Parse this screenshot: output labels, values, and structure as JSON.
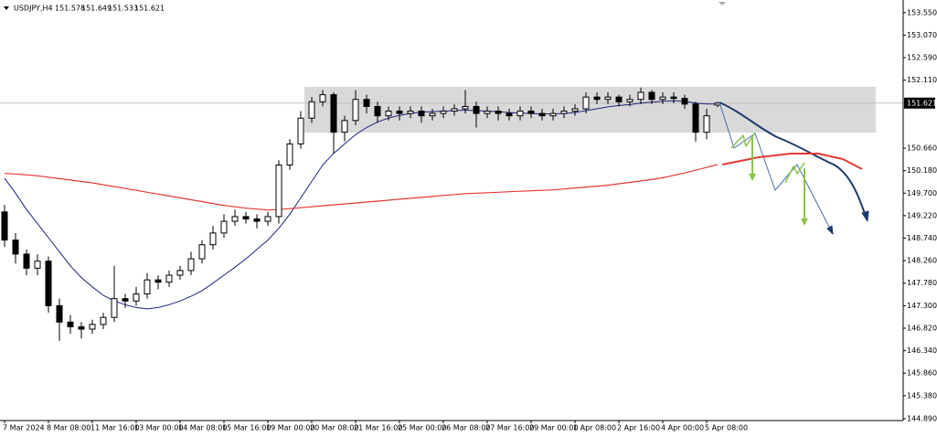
{
  "chart_data": {
    "type": "candlestick",
    "symbol": "USDJPY,H4",
    "categories": [
      "7 Mar 2024",
      null,
      null,
      null,
      "8 Mar 08:00",
      null,
      null,
      null,
      "11 Mar 16:00",
      null,
      null,
      null,
      "13 Mar 00:00",
      null,
      null,
      null,
      "14 Mar 08:00",
      null,
      null,
      null,
      "15 Mar 16:00",
      null,
      null,
      null,
      "19 Mar 00:00",
      null,
      null,
      null,
      "20 Mar 08:00",
      null,
      null,
      null,
      "21 Mar 16:00",
      null,
      null,
      null,
      "25 Mar 00:00",
      null,
      null,
      null,
      "26 Mar 08:00",
      null,
      null,
      null,
      "27 Mar 16:00",
      null,
      null,
      null,
      "29 Mar 00:00",
      null,
      null,
      null,
      "1 Apr 08:00",
      null,
      null,
      null,
      "2 Apr 16:00",
      null,
      null,
      null,
      "4 Apr 00:00",
      null,
      null,
      null,
      "5 Apr 08:00",
      null
    ],
    "open": [
      149.3,
      148.7,
      148.4,
      148.1,
      148.25,
      147.3,
      146.95,
      146.85,
      146.8,
      146.9,
      147.05,
      147.45,
      147.4,
      147.55,
      147.85,
      147.8,
      147.95,
      148.05,
      148.3,
      148.6,
      148.85,
      149.1,
      149.2,
      149.15,
      149.1,
      149.2,
      150.3,
      150.75,
      151.3,
      151.65,
      151.8,
      151.0,
      151.25,
      151.7,
      151.55,
      151.35,
      151.45,
      151.4,
      151.45,
      151.35,
      151.4,
      151.45,
      151.5,
      151.55,
      151.4,
      151.45,
      151.4,
      151.35,
      151.45,
      151.4,
      151.35,
      151.4,
      151.45,
      151.5,
      151.75,
      151.7,
      151.75,
      151.65,
      151.7,
      151.85,
      151.7,
      151.75,
      151.72,
      151.6,
      151.0,
      151.578
    ],
    "high": [
      149.45,
      148.85,
      148.5,
      148.4,
      148.35,
      147.45,
      147.1,
      146.95,
      147.0,
      147.15,
      148.15,
      147.55,
      147.7,
      148.0,
      147.95,
      148.05,
      148.15,
      148.45,
      148.7,
      149.0,
      149.25,
      149.35,
      149.3,
      149.25,
      149.3,
      150.4,
      150.85,
      151.45,
      151.75,
      151.9,
      151.85,
      151.35,
      151.9,
      151.8,
      151.65,
      151.55,
      151.55,
      151.55,
      151.55,
      151.5,
      151.55,
      151.6,
      151.9,
      151.65,
      151.55,
      151.55,
      151.5,
      151.55,
      151.55,
      151.5,
      151.5,
      151.55,
      151.6,
      151.85,
      151.85,
      151.85,
      151.8,
      151.8,
      151.95,
      151.9,
      151.85,
      151.85,
      151.8,
      151.65,
      151.5,
      151.649
    ],
    "low": [
      148.55,
      148.2,
      147.95,
      147.95,
      147.15,
      146.55,
      146.7,
      146.6,
      146.7,
      146.8,
      146.95,
      147.25,
      147.3,
      147.45,
      147.65,
      147.7,
      147.85,
      147.95,
      148.2,
      148.5,
      148.75,
      149.0,
      149.05,
      148.95,
      149.0,
      149.05,
      150.2,
      150.65,
      151.2,
      151.55,
      150.55,
      150.8,
      151.15,
      151.4,
      151.2,
      151.25,
      151.25,
      151.3,
      151.2,
      151.25,
      151.3,
      151.35,
      151.4,
      151.1,
      151.3,
      151.25,
      151.25,
      151.25,
      151.3,
      151.25,
      151.25,
      151.3,
      151.35,
      151.4,
      151.6,
      151.6,
      151.55,
      151.55,
      151.6,
      151.6,
      151.6,
      151.62,
      151.5,
      150.8,
      150.85,
      151.533
    ],
    "close": [
      148.7,
      148.4,
      148.1,
      148.25,
      147.3,
      146.95,
      146.85,
      146.8,
      146.9,
      147.05,
      147.45,
      147.4,
      147.55,
      147.85,
      147.8,
      147.95,
      148.05,
      148.3,
      148.6,
      148.85,
      149.1,
      149.2,
      149.15,
      149.1,
      149.2,
      150.3,
      150.75,
      151.3,
      151.65,
      151.8,
      151.0,
      151.25,
      151.7,
      151.55,
      151.35,
      151.45,
      151.4,
      151.45,
      151.35,
      151.4,
      151.45,
      151.5,
      151.55,
      151.4,
      151.45,
      151.4,
      151.35,
      151.45,
      151.4,
      151.35,
      151.4,
      151.45,
      151.5,
      151.75,
      151.7,
      151.75,
      151.65,
      151.7,
      151.85,
      151.7,
      151.75,
      151.72,
      151.6,
      151.0,
      151.35,
      151.621
    ],
    "series": [
      {
        "color": "#1a237e",
        "values": [
          150.02,
          149.7,
          149.35,
          149.05,
          148.75,
          148.45,
          148.15,
          147.9,
          147.7,
          147.52,
          147.4,
          147.32,
          147.26,
          147.23,
          147.26,
          147.32,
          147.4,
          147.5,
          147.62,
          147.78,
          147.95,
          148.12,
          148.3,
          148.5,
          148.7,
          148.95,
          149.25,
          149.6,
          149.95,
          150.3,
          150.55,
          150.75,
          150.95,
          151.1,
          151.22,
          151.3,
          151.36,
          151.4,
          151.43,
          151.44,
          151.45,
          151.46,
          151.47,
          151.46,
          151.45,
          151.44,
          151.42,
          151.41,
          151.4,
          151.39,
          151.39,
          151.4,
          151.42,
          151.46,
          151.5,
          151.54,
          151.57,
          151.59,
          151.62,
          151.64,
          151.66,
          151.67,
          151.66,
          151.62,
          151.6,
          151.6
        ]
      },
      {
        "color": "#e53935",
        "values": [
          150.12,
          150.11,
          150.09,
          150.07,
          150.04,
          150.01,
          149.98,
          149.95,
          149.92,
          149.88,
          149.84,
          149.8,
          149.76,
          149.72,
          149.68,
          149.64,
          149.6,
          149.56,
          149.52,
          149.48,
          149.44,
          149.41,
          149.38,
          149.36,
          149.34,
          149.35,
          149.37,
          149.39,
          149.41,
          149.43,
          149.45,
          149.47,
          149.49,
          149.51,
          149.53,
          149.55,
          149.57,
          149.59,
          149.61,
          149.63,
          149.65,
          149.67,
          149.69,
          149.7,
          149.71,
          149.72,
          149.73,
          149.74,
          149.75,
          149.76,
          149.77,
          149.79,
          149.81,
          149.83,
          149.85,
          149.87,
          149.9,
          149.93,
          149.96,
          149.99,
          150.03,
          150.08,
          150.13,
          150.19,
          150.25,
          150.31
        ]
      }
    ],
    "price_line": 151.621,
    "zone": [
      150.99,
      151.97
    ],
    "ylim": [
      144.85,
      153.82
    ],
    "yticks": [
      {
        "value": 153.55,
        "label": "153.550"
      },
      {
        "value": 153.07,
        "label": "153.070"
      },
      {
        "value": 152.59,
        "label": "152.590"
      },
      {
        "value": 152.11,
        "label": "152.110"
      },
      {
        "value": 150.66,
        "label": "150.660"
      },
      {
        "value": 150.18,
        "label": "150.180"
      },
      {
        "value": 149.7,
        "label": "149.700"
      },
      {
        "value": 149.22,
        "label": "149.220"
      },
      {
        "value": 148.74,
        "label": "148.740"
      },
      {
        "value": 148.26,
        "label": "148.260"
      },
      {
        "value": 147.78,
        "label": "147.780"
      },
      {
        "value": 147.3,
        "label": "147.300"
      },
      {
        "value": 146.82,
        "label": "146.820"
      },
      {
        "value": 146.34,
        "label": "146.340"
      },
      {
        "value": 145.86,
        "label": "145.860"
      },
      {
        "value": 145.38,
        "label": "145.380"
      },
      {
        "value": 144.89,
        "label": "144.890"
      }
    ],
    "bull_color": "#ffffff",
    "bear_color": "#000000"
  }
}
